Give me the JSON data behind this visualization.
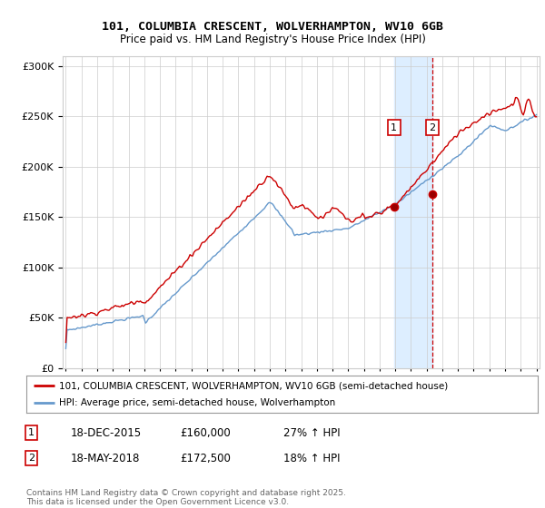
{
  "title1": "101, COLUMBIA CRESCENT, WOLVERHAMPTON, WV10 6GB",
  "title2": "Price paid vs. HM Land Registry's House Price Index (HPI)",
  "legend1": "101, COLUMBIA CRESCENT, WOLVERHAMPTON, WV10 6GB (semi-detached house)",
  "legend2": "HPI: Average price, semi-detached house, Wolverhampton",
  "footnote": "Contains HM Land Registry data © Crown copyright and database right 2025.\nThis data is licensed under the Open Government Licence v3.0.",
  "transaction1_date": "18-DEC-2015",
  "transaction1_price": "£160,000",
  "transaction1_hpi": "27% ↑ HPI",
  "transaction2_date": "18-MAY-2018",
  "transaction2_price": "£172,500",
  "transaction2_hpi": "18% ↑ HPI",
  "red_color": "#cc0000",
  "blue_color": "#6699cc",
  "shade_color": "#ddeeff",
  "background_color": "#ffffff",
  "plot_bg_color": "#ffffff",
  "grid_color": "#cccccc",
  "year_start": 1995,
  "year_end": 2025,
  "ymin": 0,
  "ymax": 310000,
  "t1_year": 2015.92,
  "t2_year": 2018.37,
  "p1": 160000,
  "p2": 172500
}
